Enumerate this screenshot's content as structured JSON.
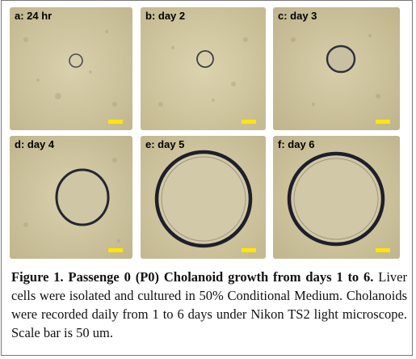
{
  "panels": [
    {
      "label": "a: 24 hr"
    },
    {
      "label": "b: day 2"
    },
    {
      "label": "c: day 3"
    },
    {
      "label": "d: day 4"
    },
    {
      "label": "e: day 5"
    },
    {
      "label": "f: day 6"
    }
  ],
  "colors": {
    "background_light": "#d6cda8",
    "background_dark": "#b8ad86",
    "organoid_rim": "#2b2b36",
    "scale_bar": "#ffe600"
  },
  "caption": {
    "bold": "Figure 1. Passenge 0 (P0) Cholanoid growth from days 1 to 6.",
    "text": " Liver cells were isolated  and cultured in 50% Conditional Medium. Cholanoids were recorded daily from 1 to 6 days under Nikon TS2 light microscope. Scale bar is 50 um."
  }
}
